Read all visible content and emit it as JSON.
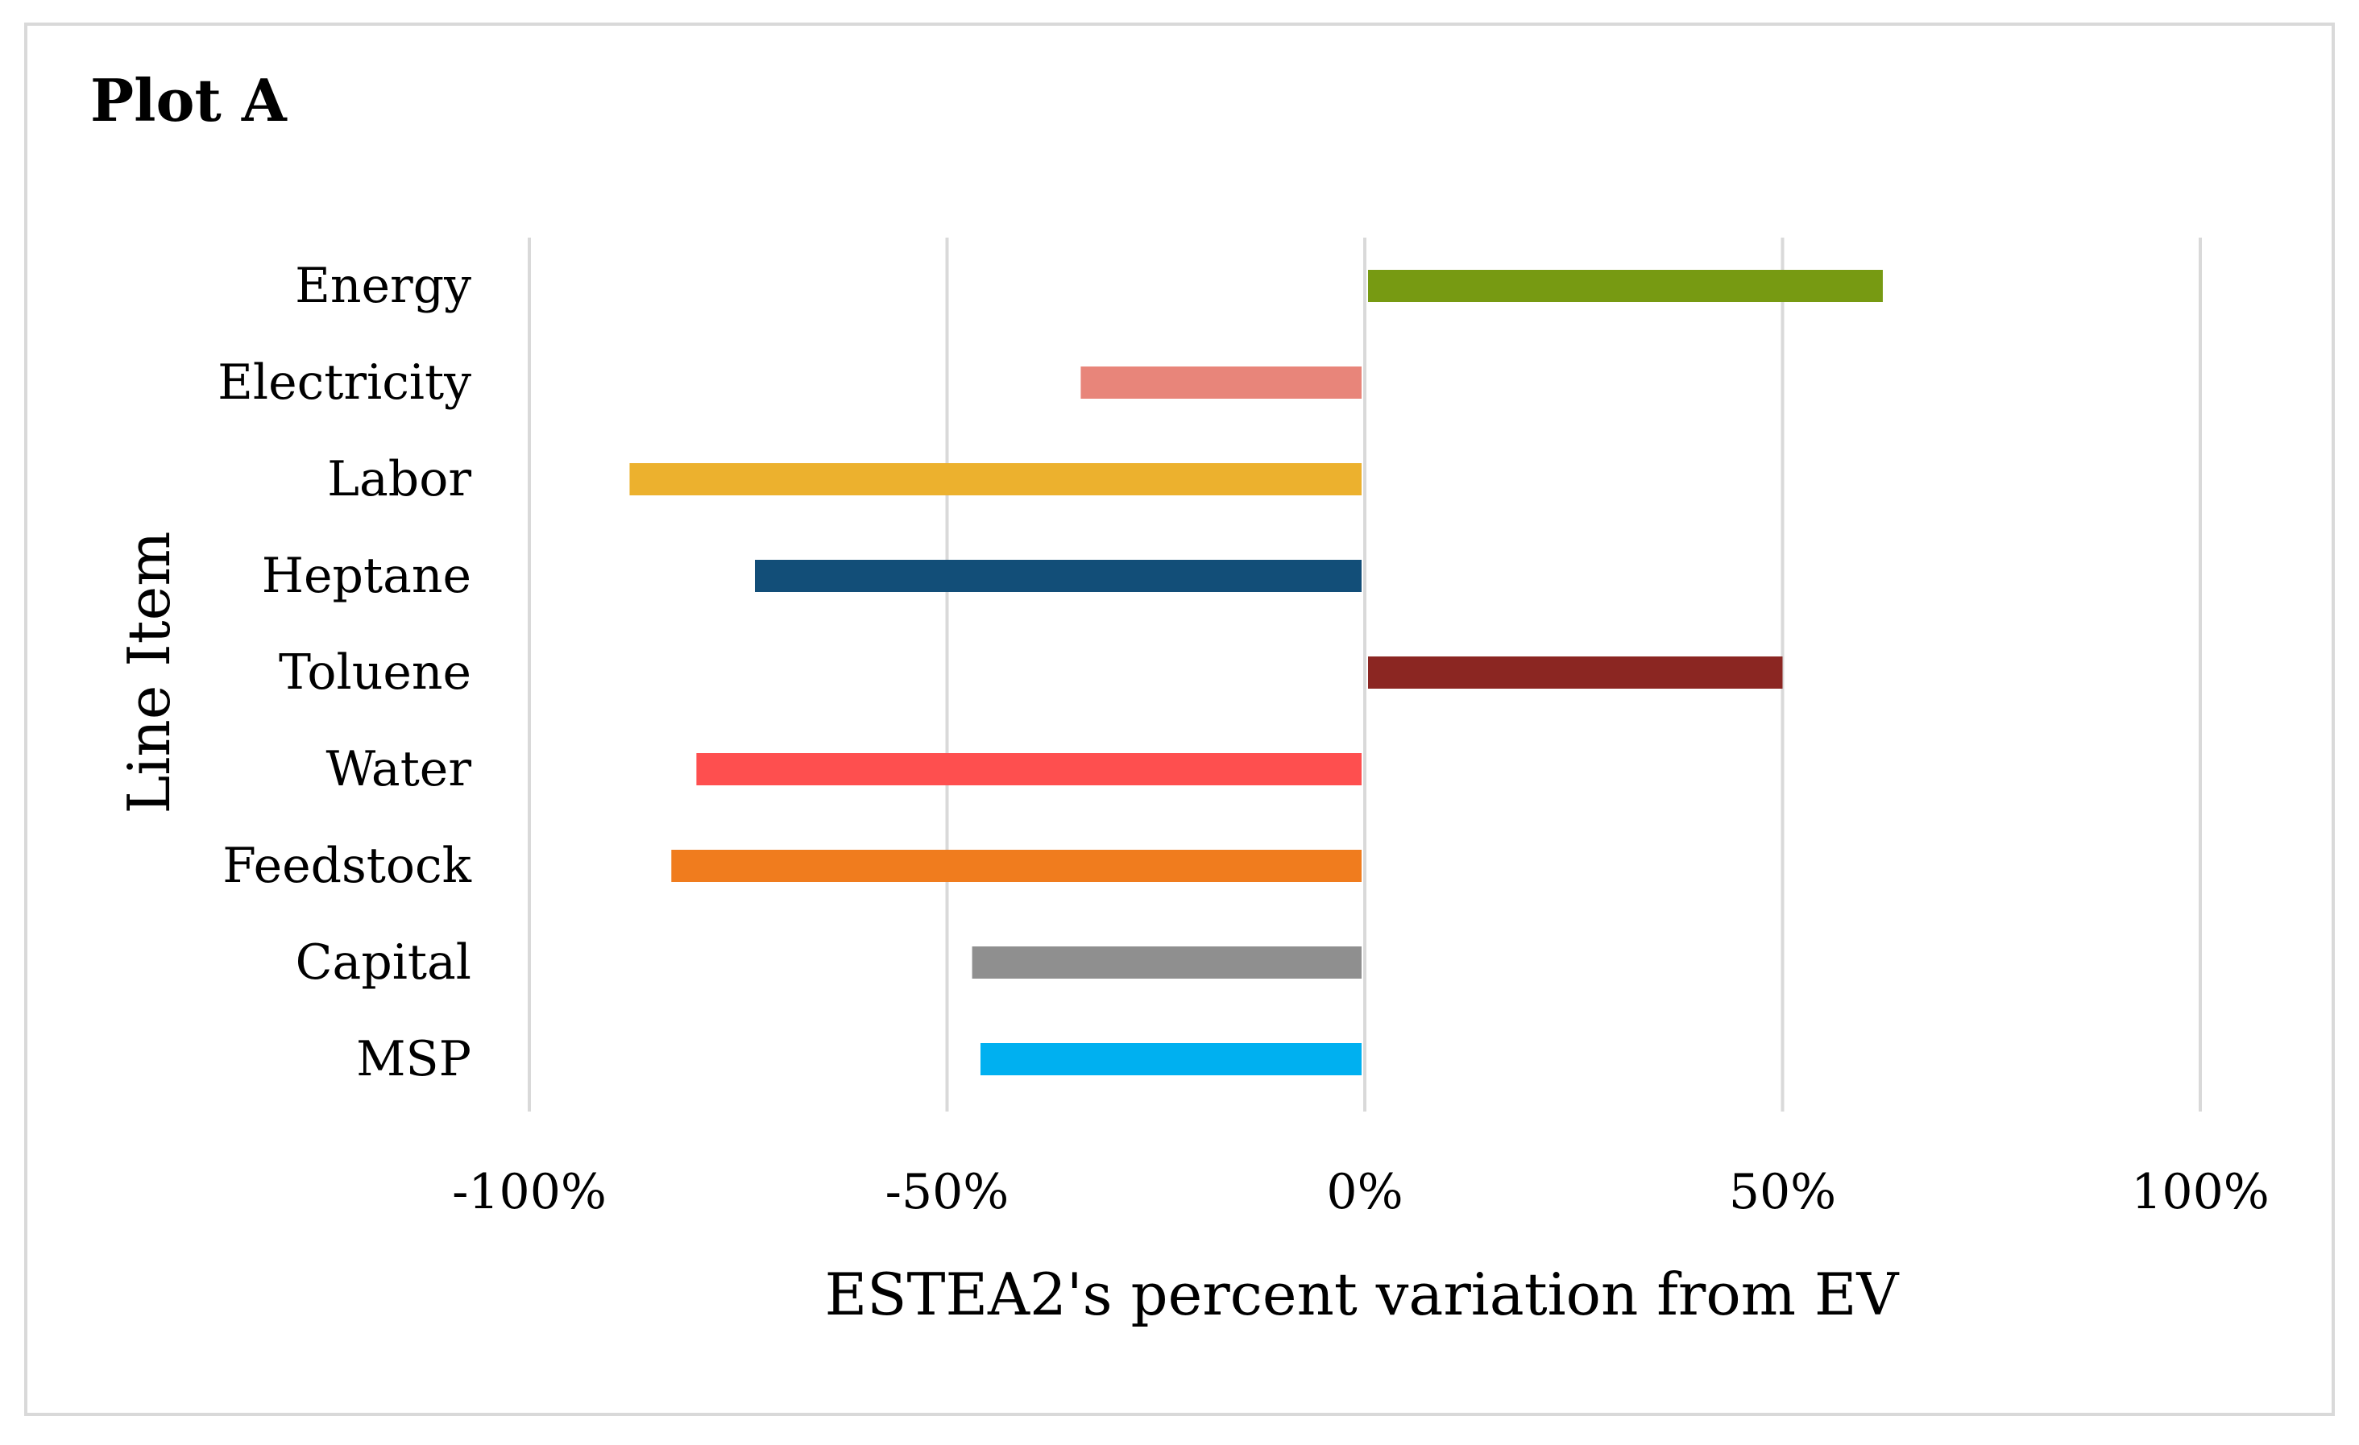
{
  "chart_data": {
    "type": "bar",
    "orientation": "horizontal",
    "title": "Plot A",
    "categories": [
      "Energy",
      "Electricity",
      "Labor",
      "Heptane",
      "Toluene",
      "Water",
      "Feedstock",
      "Capital",
      "MSP"
    ],
    "values": [
      62,
      -34,
      -88,
      -73,
      50,
      -80,
      -83,
      -47,
      -46
    ],
    "colors": [
      "#779a12",
      "#e8857a",
      "#ecb12e",
      "#124e78",
      "#8b2622",
      "#fe4f4f",
      "#f07c1e",
      "#8f8f8f",
      "#00b0f0"
    ],
    "xlabel": "ESTEA2's percent variation from EV",
    "ylabel": "Line Item",
    "xlim": [
      -100,
      100
    ],
    "xticks": [
      -100,
      -50,
      0,
      50,
      100
    ],
    "xtick_labels": [
      "-100%",
      "-50%",
      "0%",
      "50%",
      "100%"
    ],
    "grid": true,
    "legend": false
  }
}
